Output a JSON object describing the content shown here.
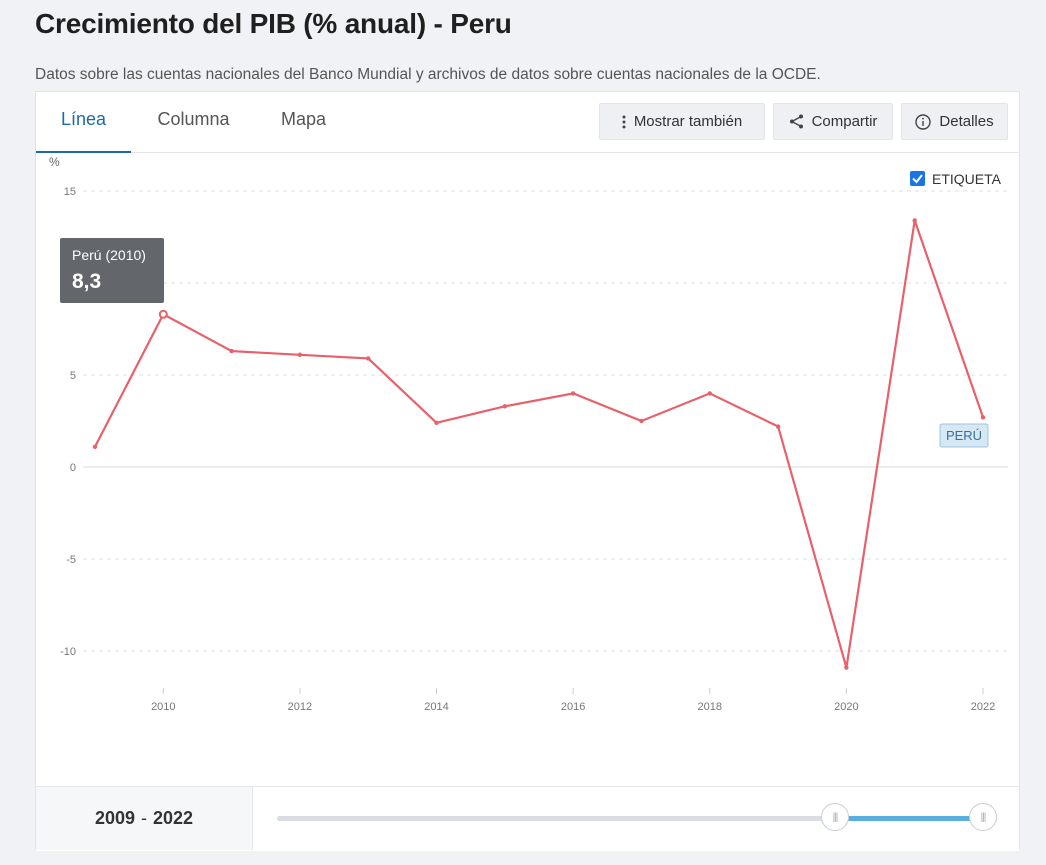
{
  "page": {
    "title": "Crecimiento del PIB (% anual) - Peru",
    "subtitle": "Datos sobre las cuentas nacionales del Banco Mundial y archivos de datos sobre cuentas nacionales de la OCDE."
  },
  "tabs": [
    {
      "label": "Línea",
      "active": true
    },
    {
      "label": "Columna",
      "active": false
    },
    {
      "label": "Mapa",
      "active": false
    }
  ],
  "actions": {
    "show_also": "Mostrar también",
    "share": "Compartir",
    "details": "Detalles"
  },
  "legend": {
    "checkbox_label": "ETIQUETA",
    "checked": true,
    "series_tag": "PERÚ"
  },
  "tooltip": {
    "label": "Perú (2010)",
    "value": "8,3"
  },
  "range": {
    "start": "2009",
    "separator": "-",
    "end": "2022"
  },
  "colors": {
    "series": "#e8606a",
    "accent": "#1f6aa5",
    "slider_fill": "#5aaee0"
  },
  "chart_data": {
    "type": "line",
    "title": "Crecimiento del PIB (% anual) - Peru",
    "ylabel": "%",
    "xlabel": "",
    "x": [
      2009,
      2010,
      2011,
      2012,
      2013,
      2014,
      2015,
      2016,
      2017,
      2018,
      2019,
      2020,
      2021,
      2022
    ],
    "series": [
      {
        "name": "PERÚ",
        "values": [
          1.1,
          8.3,
          6.3,
          6.1,
          5.9,
          2.4,
          3.3,
          4.0,
          2.5,
          4.0,
          2.2,
          -10.9,
          13.4,
          2.7
        ]
      }
    ],
    "ylim": [
      -12,
      15
    ],
    "yticks": [
      15,
      5,
      0,
      -5,
      -10
    ],
    "xticks": [
      2010,
      2012,
      2014,
      2016,
      2018,
      2020,
      2022
    ],
    "grid": true,
    "legend": "top-right",
    "highlight": {
      "x": 2010,
      "value": 8.3
    }
  }
}
